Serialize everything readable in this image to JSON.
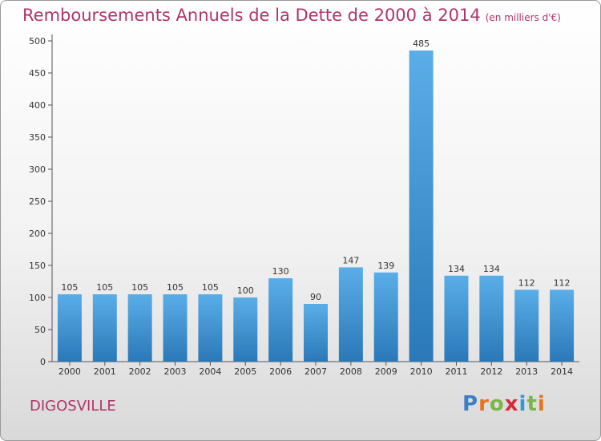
{
  "title": "Remboursements Annuels de la Dette de 2000 à 2014",
  "subtitle": "(en milliers d'€)",
  "commune": "DIGOSVILLE",
  "logo": {
    "letters": [
      "P",
      "r",
      "o",
      "x",
      "i",
      "t",
      "i"
    ],
    "colors": [
      "#3b7fc4",
      "#e8731c",
      "#7ab648",
      "#d8283a",
      "#2e9bd6",
      "#7ab648",
      "#e8731c"
    ]
  },
  "colors": {
    "bar_light": "#5aaee8",
    "bar_dark": "#2a78b8",
    "title": "#b0346a"
  },
  "chart_data": {
    "type": "bar",
    "title": "Remboursements Annuels de la Dette de 2000 à 2014",
    "ylabel": "en milliers d'€",
    "categories": [
      "2000",
      "2001",
      "2002",
      "2003",
      "2004",
      "2005",
      "2006",
      "2007",
      "2008",
      "2009",
      "2010",
      "2011",
      "2012",
      "2013",
      "2014"
    ],
    "values": [
      105,
      105,
      105,
      105,
      105,
      100,
      130,
      90,
      147,
      139,
      485,
      134,
      134,
      112,
      112
    ],
    "ylim": [
      0,
      500
    ],
    "yticks": [
      0,
      50,
      100,
      150,
      200,
      250,
      300,
      350,
      400,
      450,
      500
    ],
    "grid": false
  }
}
